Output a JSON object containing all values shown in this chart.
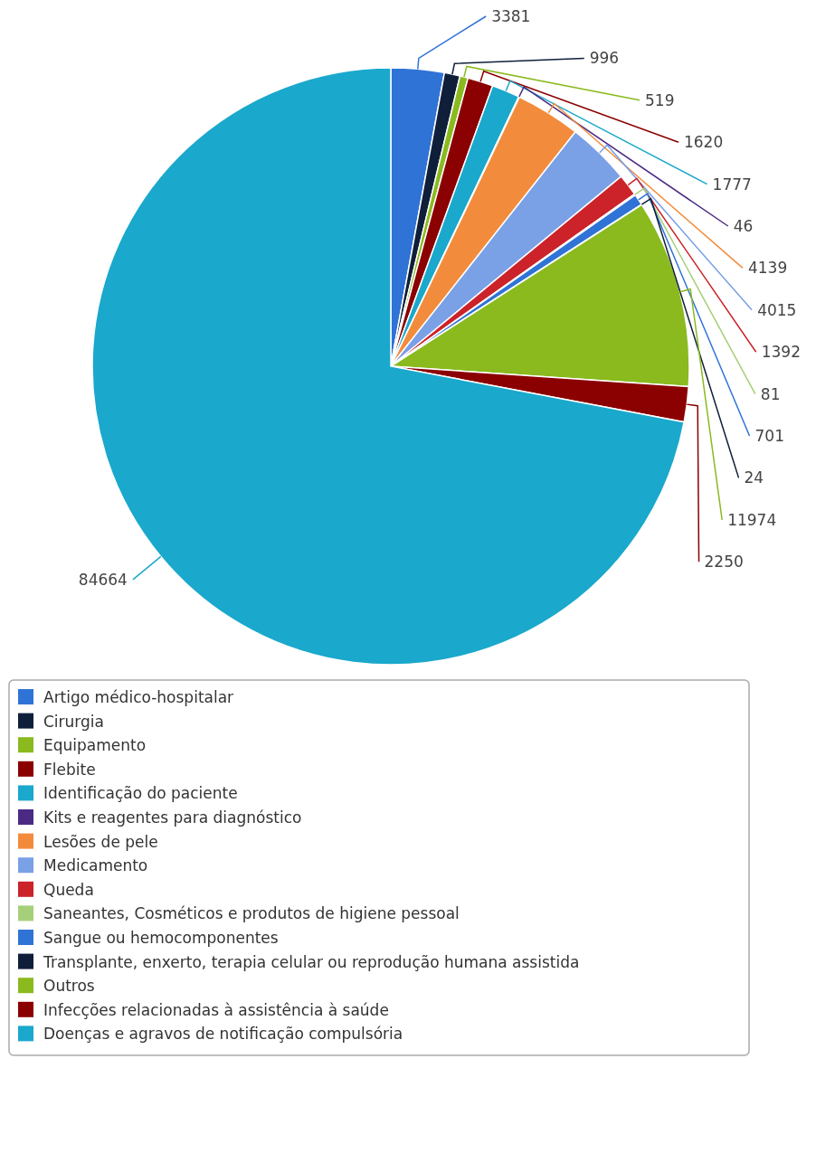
{
  "chart_data": {
    "type": "pie",
    "categories": [
      "Artigo médico-hospitalar",
      "Cirurgia",
      "Equipamento",
      "Flebite",
      "Identificação do paciente",
      "Kits e reagentes para diagnóstico",
      "Lesões de pele",
      "Medicamento",
      "Queda",
      "Saneantes, Cosméticos e produtos de higiene pessoal",
      "Sangue ou hemocomponentes",
      "Transplante, enxerto, terapia celular ou reprodução humana assistida",
      "Outros",
      "Infecções relacionadas à assistência à saúde",
      "Doenças e agravos de notificação compulsória"
    ],
    "values": [
      3381,
      996,
      519,
      1620,
      1777,
      46,
      4139,
      4015,
      1392,
      81,
      701,
      24,
      11974,
      2250,
      84664
    ],
    "colors": [
      "#2f73d6",
      "#0f1f3a",
      "#8aba1e",
      "#8b0000",
      "#1aa8cc",
      "#4b2a84",
      "#f28c3c",
      "#7aa0e6",
      "#cc2229",
      "#a6cf7a",
      "#2f73d6",
      "#0f1f3a",
      "#8aba1e",
      "#8b0000",
      "#1aa8cc"
    ],
    "data_labels": true,
    "legend": "bottom"
  }
}
